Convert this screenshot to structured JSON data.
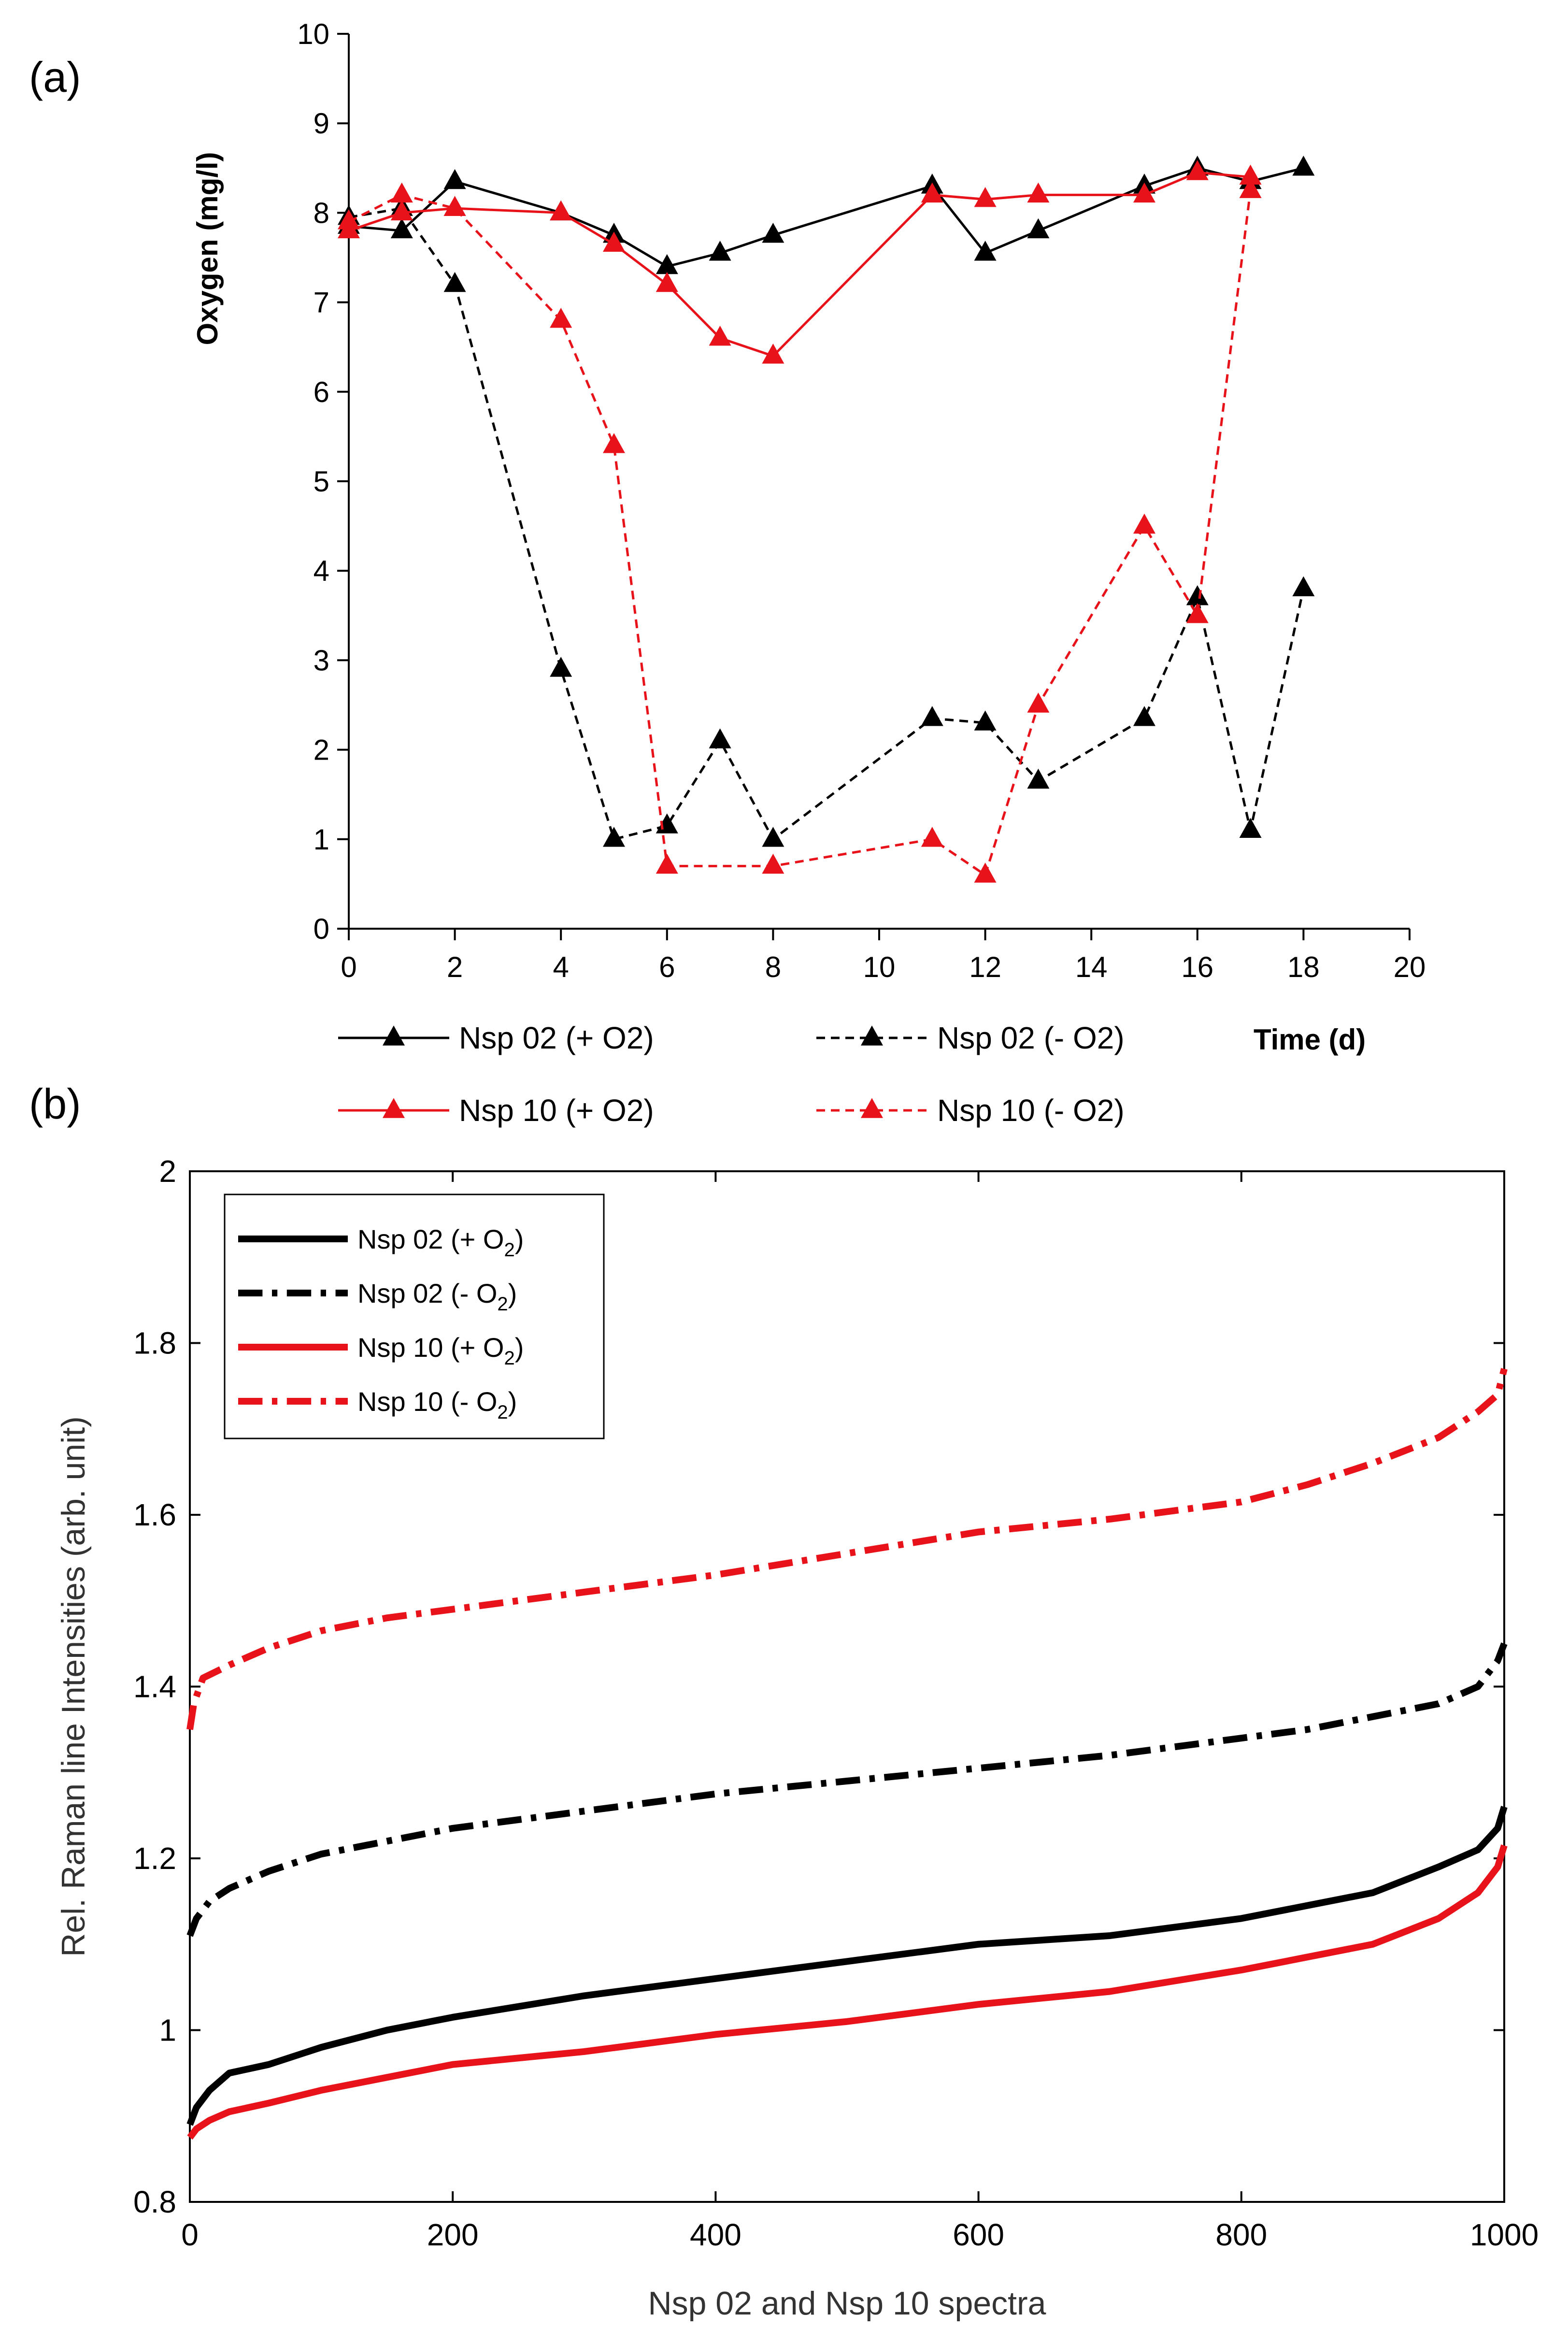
{
  "panels": {
    "a": {
      "label": "(a)"
    },
    "b": {
      "label": "(b)"
    }
  },
  "chart_data": [
    {
      "type": "line",
      "panel": "(a)",
      "title": "",
      "xlabel": "Time (d)",
      "ylabel": "Oxygen  (mg/l)",
      "xlim": [
        0,
        20
      ],
      "ylim": [
        0,
        10
      ],
      "xticks": [
        0,
        2,
        4,
        6,
        8,
        10,
        12,
        14,
        16,
        18,
        20
      ],
      "yticks": [
        0,
        1,
        2,
        3,
        4,
        5,
        6,
        7,
        8,
        9,
        10
      ],
      "grid": false,
      "legend_position": "bottom",
      "series": [
        {
          "name": "Nsp 02 (+ O2)",
          "color": "#000000",
          "dash": "solid",
          "marker": "triangle",
          "x": [
            0,
            1,
            2,
            4,
            5,
            6,
            7,
            8,
            11,
            12,
            13,
            15,
            16,
            17,
            18
          ],
          "y": [
            7.85,
            7.8,
            8.35,
            8.0,
            7.75,
            7.4,
            7.55,
            7.75,
            8.3,
            7.55,
            7.8,
            8.3,
            8.5,
            8.35,
            8.5
          ]
        },
        {
          "name": "Nsp 02 (- O2)",
          "color": "#000000",
          "dash": "dashed",
          "marker": "triangle",
          "x": [
            0,
            1,
            2,
            4,
            5,
            6,
            7,
            8,
            11,
            12,
            13,
            15,
            16,
            17,
            18
          ],
          "y": [
            7.95,
            8.05,
            7.2,
            2.9,
            1.0,
            1.15,
            2.1,
            1.0,
            2.35,
            2.3,
            1.65,
            2.35,
            3.7,
            1.1,
            3.8
          ]
        },
        {
          "name": "Nsp 10 (+ O2)",
          "color": "#e8131a",
          "dash": "solid",
          "marker": "triangle",
          "x": [
            0,
            1,
            2,
            4,
            5,
            6,
            7,
            8,
            11,
            12,
            13,
            15,
            16,
            17
          ],
          "y": [
            7.8,
            8.0,
            8.05,
            8.0,
            7.65,
            7.2,
            6.6,
            6.4,
            8.2,
            8.15,
            8.2,
            8.2,
            8.45,
            8.4
          ]
        },
        {
          "name": "Nsp 10 (- O2)",
          "color": "#e8131a",
          "dash": "dashed",
          "marker": "triangle",
          "x": [
            0,
            1,
            2,
            4,
            5,
            6,
            8,
            11,
            12,
            13,
            15,
            16,
            17
          ],
          "y": [
            7.9,
            8.2,
            8.05,
            6.8,
            5.4,
            0.7,
            0.7,
            1.0,
            0.6,
            2.5,
            4.5,
            3.5,
            8.25
          ]
        }
      ]
    },
    {
      "type": "line",
      "panel": "(b)",
      "title": "",
      "xlabel": "Nsp 02 and Nsp 10 spectra",
      "ylabel": "Rel. Raman line Intensities (arb. unit)",
      "xlim": [
        0,
        1000
      ],
      "ylim": [
        0.8,
        2.0
      ],
      "xticks": [
        0,
        200,
        400,
        600,
        800,
        1000
      ],
      "yticks": [
        0.8,
        1.0,
        1.2,
        1.4,
        1.6,
        1.8,
        2.0
      ],
      "ytick_labels": [
        "0.8",
        "1",
        "1.2",
        "1.4",
        "1.6",
        "1.8",
        "2"
      ],
      "grid": false,
      "legend_position": "top-left",
      "series": [
        {
          "name": "Nsp 02 (+ O",
          "name_sub": "2",
          "name_end": ")",
          "color": "#000000",
          "dash": "solid",
          "x": [
            0,
            5,
            15,
            30,
            60,
            100,
            150,
            200,
            300,
            400,
            500,
            600,
            700,
            800,
            850,
            900,
            950,
            980,
            995,
            1000
          ],
          "y": [
            0.89,
            0.91,
            0.93,
            0.95,
            0.96,
            0.98,
            1.0,
            1.015,
            1.04,
            1.06,
            1.08,
            1.1,
            1.11,
            1.13,
            1.145,
            1.16,
            1.19,
            1.21,
            1.235,
            1.26
          ]
        },
        {
          "name": "Nsp 02 (- O",
          "name_sub": "2",
          "name_end": ")",
          "color": "#000000",
          "dash": "dashdot",
          "x": [
            0,
            5,
            15,
            30,
            60,
            100,
            150,
            200,
            300,
            400,
            500,
            600,
            700,
            800,
            850,
            900,
            950,
            980,
            995,
            1000
          ],
          "y": [
            1.11,
            1.13,
            1.15,
            1.165,
            1.185,
            1.205,
            1.22,
            1.235,
            1.255,
            1.275,
            1.29,
            1.305,
            1.32,
            1.34,
            1.35,
            1.365,
            1.38,
            1.4,
            1.43,
            1.45
          ]
        },
        {
          "name": "Nsp 10 (+ O",
          "name_sub": "2",
          "name_end": ")",
          "color": "#e8131a",
          "dash": "solid",
          "x": [
            0,
            5,
            15,
            30,
            60,
            100,
            150,
            200,
            300,
            400,
            500,
            600,
            700,
            800,
            850,
            900,
            950,
            980,
            995,
            1000
          ],
          "y": [
            0.875,
            0.885,
            0.895,
            0.905,
            0.915,
            0.93,
            0.945,
            0.96,
            0.975,
            0.995,
            1.01,
            1.03,
            1.045,
            1.07,
            1.085,
            1.1,
            1.13,
            1.16,
            1.19,
            1.215
          ]
        },
        {
          "name": "Nsp 10 (- O",
          "name_sub": "2",
          "name_end": ")",
          "color": "#e8131a",
          "dash": "dashdot",
          "x": [
            0,
            3,
            10,
            30,
            60,
            100,
            150,
            200,
            300,
            400,
            500,
            600,
            700,
            800,
            850,
            900,
            950,
            980,
            995,
            1000
          ],
          "y": [
            1.35,
            1.38,
            1.41,
            1.425,
            1.445,
            1.465,
            1.48,
            1.49,
            1.51,
            1.53,
            1.555,
            1.58,
            1.595,
            1.615,
            1.635,
            1.66,
            1.69,
            1.72,
            1.74,
            1.77
          ]
        }
      ]
    }
  ]
}
